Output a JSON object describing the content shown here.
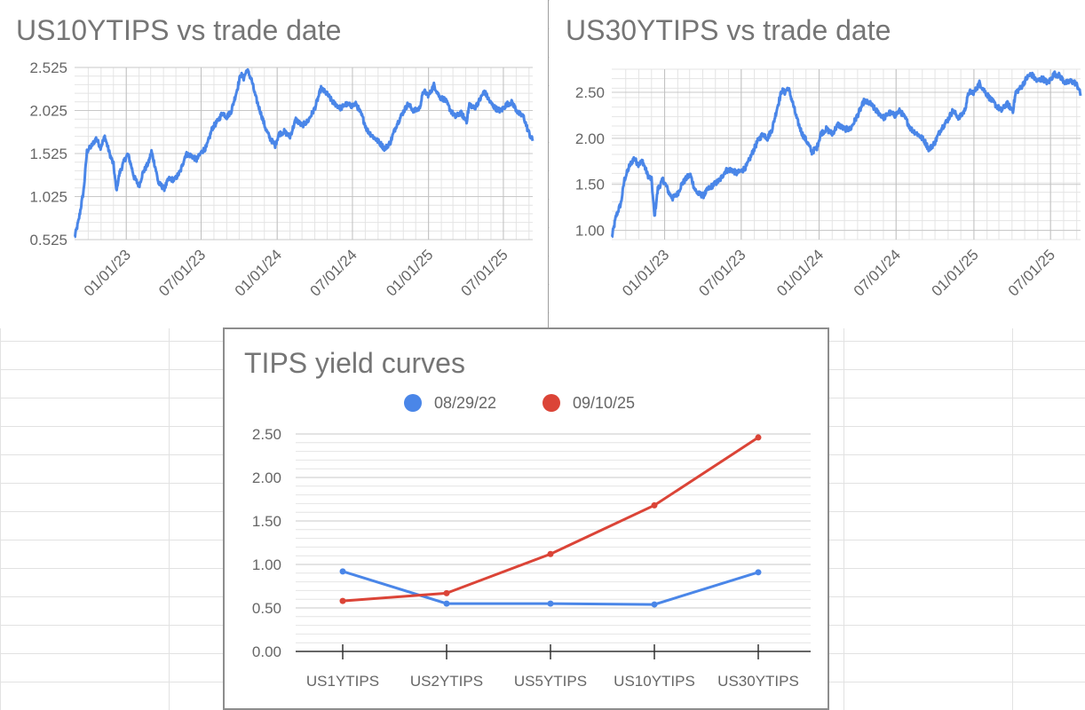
{
  "chart_data": [
    {
      "type": "line",
      "title": "US10YTIPS vs trade date",
      "xlabel": "",
      "ylabel": "",
      "x_start": "2022-08-29",
      "x_end": "2025-09-10",
      "xlim": [
        "2022-08-29",
        "2025-09-10"
      ],
      "ylim": [
        0.525,
        2.525
      ],
      "yticks": [
        "0.525",
        "1.025",
        "1.525",
        "2.025",
        "2.525"
      ],
      "xticks": [
        {
          "date": "2023-01-01",
          "label": "01/01/23"
        },
        {
          "date": "2023-07-01",
          "label": "07/01/23"
        },
        {
          "date": "2024-01-01",
          "label": "01/01/24"
        },
        {
          "date": "2024-07-01",
          "label": "07/01/24"
        },
        {
          "date": "2025-01-01",
          "label": "01/01/25"
        },
        {
          "date": "2025-07-01",
          "label": "07/01/25"
        }
      ],
      "grid": true,
      "series": [
        {
          "color": "#4a86e8",
          "points": [
            [
              "2022-08-29",
              0.55
            ],
            [
              "2022-09-08",
              0.75
            ],
            [
              "2022-09-20",
              1.1
            ],
            [
              "2022-09-28",
              1.55
            ],
            [
              "2022-10-10",
              1.62
            ],
            [
              "2022-10-20",
              1.7
            ],
            [
              "2022-10-31",
              1.6
            ],
            [
              "2022-11-10",
              1.72
            ],
            [
              "2022-11-22",
              1.52
            ],
            [
              "2022-12-01",
              1.4
            ],
            [
              "2022-12-08",
              1.1
            ],
            [
              "2022-12-16",
              1.3
            ],
            [
              "2022-12-28",
              1.45
            ],
            [
              "2023-01-05",
              1.52
            ],
            [
              "2023-01-12",
              1.4
            ],
            [
              "2023-01-20",
              1.25
            ],
            [
              "2023-02-01",
              1.15
            ],
            [
              "2023-02-10",
              1.3
            ],
            [
              "2023-02-24",
              1.42
            ],
            [
              "2023-03-03",
              1.55
            ],
            [
              "2023-03-13",
              1.35
            ],
            [
              "2023-03-20",
              1.18
            ],
            [
              "2023-04-03",
              1.12
            ],
            [
              "2023-04-14",
              1.23
            ],
            [
              "2023-04-28",
              1.22
            ],
            [
              "2023-05-12",
              1.32
            ],
            [
              "2023-05-25",
              1.52
            ],
            [
              "2023-06-08",
              1.5
            ],
            [
              "2023-06-20",
              1.45
            ],
            [
              "2023-07-03",
              1.55
            ],
            [
              "2023-07-14",
              1.6
            ],
            [
              "2023-07-28",
              1.82
            ],
            [
              "2023-08-10",
              1.9
            ],
            [
              "2023-08-22",
              2.0
            ],
            [
              "2023-09-01",
              1.95
            ],
            [
              "2023-09-12",
              2.02
            ],
            [
              "2023-09-25",
              2.25
            ],
            [
              "2023-10-05",
              2.45
            ],
            [
              "2023-10-12",
              2.4
            ],
            [
              "2023-10-20",
              2.5
            ],
            [
              "2023-10-31",
              2.38
            ],
            [
              "2023-11-10",
              2.18
            ],
            [
              "2023-11-22",
              2.0
            ],
            [
              "2023-12-05",
              1.8
            ],
            [
              "2023-12-15",
              1.7
            ],
            [
              "2023-12-27",
              1.62
            ],
            [
              "2024-01-05",
              1.75
            ],
            [
              "2024-01-18",
              1.78
            ],
            [
              "2024-02-01",
              1.72
            ],
            [
              "2024-02-15",
              1.92
            ],
            [
              "2024-03-01",
              1.85
            ],
            [
              "2024-03-15",
              1.9
            ],
            [
              "2024-04-01",
              2.05
            ],
            [
              "2024-04-16",
              2.28
            ],
            [
              "2024-04-30",
              2.22
            ],
            [
              "2024-05-15",
              2.12
            ],
            [
              "2024-06-03",
              2.05
            ],
            [
              "2024-06-14",
              2.1
            ],
            [
              "2024-06-28",
              2.08
            ],
            [
              "2024-07-10",
              2.1
            ],
            [
              "2024-07-25",
              1.95
            ],
            [
              "2024-08-05",
              1.8
            ],
            [
              "2024-08-20",
              1.72
            ],
            [
              "2024-09-05",
              1.65
            ],
            [
              "2024-09-17",
              1.58
            ],
            [
              "2024-09-30",
              1.65
            ],
            [
              "2024-10-15",
              1.85
            ],
            [
              "2024-10-31",
              2.0
            ],
            [
              "2024-11-12",
              2.1
            ],
            [
              "2024-11-27",
              2.02
            ],
            [
              "2024-12-10",
              2.05
            ],
            [
              "2024-12-20",
              2.25
            ],
            [
              "2025-01-02",
              2.2
            ],
            [
              "2025-01-14",
              2.32
            ],
            [
              "2025-01-28",
              2.18
            ],
            [
              "2025-02-10",
              2.15
            ],
            [
              "2025-02-24",
              2.02
            ],
            [
              "2025-03-07",
              1.95
            ],
            [
              "2025-03-20",
              2.0
            ],
            [
              "2025-04-03",
              1.9
            ],
            [
              "2025-04-10",
              2.1
            ],
            [
              "2025-04-22",
              2.05
            ],
            [
              "2025-05-05",
              2.15
            ],
            [
              "2025-05-16",
              2.25
            ],
            [
              "2025-05-30",
              2.12
            ],
            [
              "2025-06-12",
              2.05
            ],
            [
              "2025-06-25",
              2.02
            ],
            [
              "2025-07-10",
              2.1
            ],
            [
              "2025-07-22",
              2.12
            ],
            [
              "2025-08-05",
              2.0
            ],
            [
              "2025-08-19",
              1.95
            ],
            [
              "2025-08-29",
              1.8
            ],
            [
              "2025-09-05",
              1.72
            ],
            [
              "2025-09-10",
              1.68
            ]
          ]
        }
      ]
    },
    {
      "type": "line",
      "title": "US30YTIPS vs trade date",
      "xlabel": "",
      "ylabel": "",
      "x_start": "2022-08-29",
      "x_end": "2025-09-10",
      "xlim": [
        "2022-08-29",
        "2025-09-10"
      ],
      "ylim": [
        0.9,
        2.75
      ],
      "yticks": [
        "1.00",
        "1.50",
        "2.00",
        "2.50"
      ],
      "xticks": [
        {
          "date": "2023-01-01",
          "label": "01/01/23"
        },
        {
          "date": "2023-07-01",
          "label": "07/01/23"
        },
        {
          "date": "2024-01-01",
          "label": "01/01/24"
        },
        {
          "date": "2024-07-01",
          "label": "07/01/24"
        },
        {
          "date": "2025-01-01",
          "label": "01/01/25"
        },
        {
          "date": "2025-07-01",
          "label": "07/01/25"
        }
      ],
      "grid": true,
      "series": [
        {
          "color": "#4a86e8",
          "points": [
            [
              "2022-08-29",
              0.92
            ],
            [
              "2022-09-08",
              1.15
            ],
            [
              "2022-09-20",
              1.3
            ],
            [
              "2022-09-28",
              1.55
            ],
            [
              "2022-10-10",
              1.7
            ],
            [
              "2022-10-20",
              1.78
            ],
            [
              "2022-10-31",
              1.72
            ],
            [
              "2022-11-10",
              1.75
            ],
            [
              "2022-11-22",
              1.6
            ],
            [
              "2022-12-01",
              1.55
            ],
            [
              "2022-12-08",
              1.15
            ],
            [
              "2022-12-16",
              1.45
            ],
            [
              "2022-12-28",
              1.55
            ],
            [
              "2023-01-05",
              1.48
            ],
            [
              "2023-01-12",
              1.4
            ],
            [
              "2023-01-20",
              1.35
            ],
            [
              "2023-02-01",
              1.4
            ],
            [
              "2023-02-10",
              1.5
            ],
            [
              "2023-02-24",
              1.58
            ],
            [
              "2023-03-03",
              1.6
            ],
            [
              "2023-03-13",
              1.45
            ],
            [
              "2023-03-20",
              1.4
            ],
            [
              "2023-04-03",
              1.38
            ],
            [
              "2023-04-14",
              1.45
            ],
            [
              "2023-04-28",
              1.5
            ],
            [
              "2023-05-12",
              1.55
            ],
            [
              "2023-05-25",
              1.65
            ],
            [
              "2023-06-08",
              1.66
            ],
            [
              "2023-06-20",
              1.62
            ],
            [
              "2023-07-03",
              1.65
            ],
            [
              "2023-07-14",
              1.7
            ],
            [
              "2023-07-28",
              1.85
            ],
            [
              "2023-08-10",
              1.98
            ],
            [
              "2023-08-22",
              2.05
            ],
            [
              "2023-09-01",
              2.0
            ],
            [
              "2023-09-12",
              2.1
            ],
            [
              "2023-09-25",
              2.35
            ],
            [
              "2023-10-05",
              2.52
            ],
            [
              "2023-10-12",
              2.5
            ],
            [
              "2023-10-20",
              2.55
            ],
            [
              "2023-10-31",
              2.38
            ],
            [
              "2023-11-10",
              2.2
            ],
            [
              "2023-11-22",
              2.05
            ],
            [
              "2023-12-05",
              1.95
            ],
            [
              "2023-12-15",
              1.85
            ],
            [
              "2023-12-27",
              1.9
            ],
            [
              "2024-01-05",
              2.05
            ],
            [
              "2024-01-18",
              2.1
            ],
            [
              "2024-02-01",
              2.05
            ],
            [
              "2024-02-15",
              2.15
            ],
            [
              "2024-03-01",
              2.1
            ],
            [
              "2024-03-15",
              2.1
            ],
            [
              "2024-04-01",
              2.25
            ],
            [
              "2024-04-16",
              2.4
            ],
            [
              "2024-04-30",
              2.38
            ],
            [
              "2024-05-15",
              2.3
            ],
            [
              "2024-06-03",
              2.22
            ],
            [
              "2024-06-14",
              2.28
            ],
            [
              "2024-06-28",
              2.25
            ],
            [
              "2024-07-10",
              2.3
            ],
            [
              "2024-07-25",
              2.2
            ],
            [
              "2024-08-05",
              2.1
            ],
            [
              "2024-08-20",
              2.05
            ],
            [
              "2024-09-05",
              1.98
            ],
            [
              "2024-09-17",
              1.88
            ],
            [
              "2024-09-30",
              1.95
            ],
            [
              "2024-10-15",
              2.1
            ],
            [
              "2024-10-31",
              2.2
            ],
            [
              "2024-11-12",
              2.3
            ],
            [
              "2024-11-27",
              2.22
            ],
            [
              "2024-12-10",
              2.3
            ],
            [
              "2024-12-20",
              2.5
            ],
            [
              "2025-01-02",
              2.5
            ],
            [
              "2025-01-14",
              2.6
            ],
            [
              "2025-01-28",
              2.5
            ],
            [
              "2025-02-10",
              2.42
            ],
            [
              "2025-02-24",
              2.35
            ],
            [
              "2025-03-07",
              2.3
            ],
            [
              "2025-03-20",
              2.38
            ],
            [
              "2025-04-03",
              2.3
            ],
            [
              "2025-04-10",
              2.5
            ],
            [
              "2025-04-22",
              2.55
            ],
            [
              "2025-05-05",
              2.65
            ],
            [
              "2025-05-16",
              2.7
            ],
            [
              "2025-05-30",
              2.62
            ],
            [
              "2025-06-12",
              2.65
            ],
            [
              "2025-06-25",
              2.6
            ],
            [
              "2025-07-10",
              2.7
            ],
            [
              "2025-07-22",
              2.68
            ],
            [
              "2025-08-05",
              2.6
            ],
            [
              "2025-08-19",
              2.62
            ],
            [
              "2025-08-29",
              2.6
            ],
            [
              "2025-09-05",
              2.55
            ],
            [
              "2025-09-10",
              2.47
            ]
          ]
        }
      ]
    },
    {
      "type": "line",
      "title": "TIPS yield curves",
      "xlabel": "",
      "ylabel": "",
      "categories": [
        "US1YTIPS",
        "US2YTIPS",
        "US5YTIPS",
        "US10YTIPS",
        "US30YTIPS"
      ],
      "ylim": [
        0,
        2.5
      ],
      "yticks": [
        "0.00",
        "0.50",
        "1.00",
        "1.50",
        "2.00",
        "2.50"
      ],
      "legend_position": "top",
      "grid": true,
      "series": [
        {
          "name": "08/29/22",
          "color": "#4a86e8",
          "values": [
            0.92,
            0.55,
            0.55,
            0.54,
            0.91
          ]
        },
        {
          "name": "09/10/25",
          "color": "#db4437",
          "values": [
            0.58,
            0.67,
            1.12,
            1.68,
            2.46
          ]
        }
      ]
    }
  ]
}
